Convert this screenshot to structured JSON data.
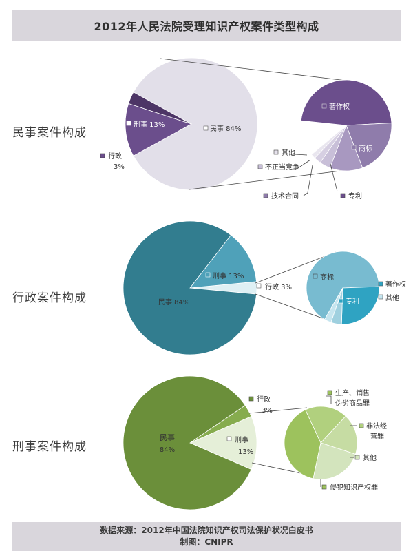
{
  "title": "2012年人民法院受理知识产权案件类型构成",
  "footer": {
    "source": "数据来源：2012年中国法院知识产权司法保护状况白皮书",
    "credit": "制图：CNIPR"
  },
  "colors": {
    "civil": [
      "#e2dfe9",
      "#6b4e8c",
      "#4d3566",
      "#8f7cab",
      "#a898c0",
      "#c8bfd8",
      "#d6cfe2"
    ],
    "admin": [
      "#327d8f",
      "#4fa1b9",
      "#dff0f4",
      "#78bbd0",
      "#2fa3c2",
      "#9fd0df"
    ],
    "criminal": [
      "#6b8f3a",
      "#86ac4e",
      "#e5efd8",
      "#9dc25d",
      "#b1d07e",
      "#c6dca3"
    ]
  },
  "chart_data": [
    {
      "type": "pie",
      "title": "民事案件构成",
      "main": {
        "slices": [
          {
            "label": "民事",
            "value": 84
          },
          {
            "label": "刑事",
            "value": 13
          },
          {
            "label": "行政",
            "value": 3
          }
        ]
      },
      "detail_of": "民事",
      "detail": {
        "slices": [
          {
            "label": "著作权"
          },
          {
            "label": "商标"
          },
          {
            "label": "专利"
          },
          {
            "label": "技术合同"
          },
          {
            "label": "不正当竞争"
          },
          {
            "label": "其他"
          }
        ]
      }
    },
    {
      "type": "pie",
      "title": "行政案件构成",
      "main": {
        "slices": [
          {
            "label": "民事",
            "value": 84
          },
          {
            "label": "刑事",
            "value": 13
          },
          {
            "label": "行政",
            "value": 3
          }
        ]
      },
      "detail_of": "行政",
      "detail": {
        "slices": [
          {
            "label": "商标"
          },
          {
            "label": "专利"
          },
          {
            "label": "著作权"
          },
          {
            "label": "其他"
          }
        ]
      }
    },
    {
      "type": "pie",
      "title": "刑事案件构成",
      "main": {
        "slices": [
          {
            "label": "民事",
            "value": 84
          },
          {
            "label": "行政",
            "value": 3
          },
          {
            "label": "刑事",
            "value": 13
          }
        ]
      },
      "detail_of": "刑事",
      "detail": {
        "slices": [
          {
            "label": "侵犯知识产权罪"
          },
          {
            "label": "生产、销售伪劣商品罪"
          },
          {
            "label": "非法经营罪"
          },
          {
            "label": "其他"
          }
        ]
      }
    }
  ]
}
